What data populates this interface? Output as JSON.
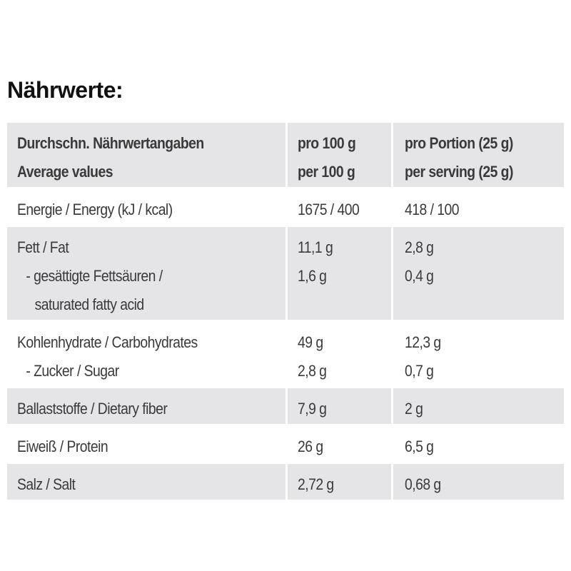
{
  "title": "Nährwerte:",
  "table": {
    "header": [
      [
        "Durchschn. Nährwertangaben",
        "Average values"
      ],
      [
        "pro 100 g",
        "per 100 g"
      ],
      [
        "pro Portion (25 g)",
        "per serving (25 g)"
      ]
    ],
    "rows": [
      [
        [
          "Energie / Energy (kJ / kcal)"
        ],
        [
          "1675 / 400"
        ],
        [
          "418 / 100"
        ]
      ],
      [
        [
          "Fett / Fat",
          "- gesättigte Fettsäuren /",
          "saturated fatty acid"
        ],
        [
          "11,1 g",
          "1,6 g"
        ],
        [
          "2,8 g",
          "0,4 g"
        ]
      ],
      [
        [
          "Kohlenhydrate / Carbohydrates",
          "- Zucker / Sugar"
        ],
        [
          "49 g",
          "2,8 g"
        ],
        [
          "12,3 g",
          "0,7 g"
        ]
      ],
      [
        [
          "Ballaststoffe / Dietary fiber"
        ],
        [
          "7,9 g"
        ],
        [
          "2 g"
        ]
      ],
      [
        [
          "Eiweiß / Protein"
        ],
        [
          "26 g"
        ],
        [
          "6,5 g"
        ]
      ],
      [
        [
          "Salz / Salt"
        ],
        [
          "2,72 g"
        ],
        [
          "0,68 g"
        ]
      ]
    ]
  }
}
